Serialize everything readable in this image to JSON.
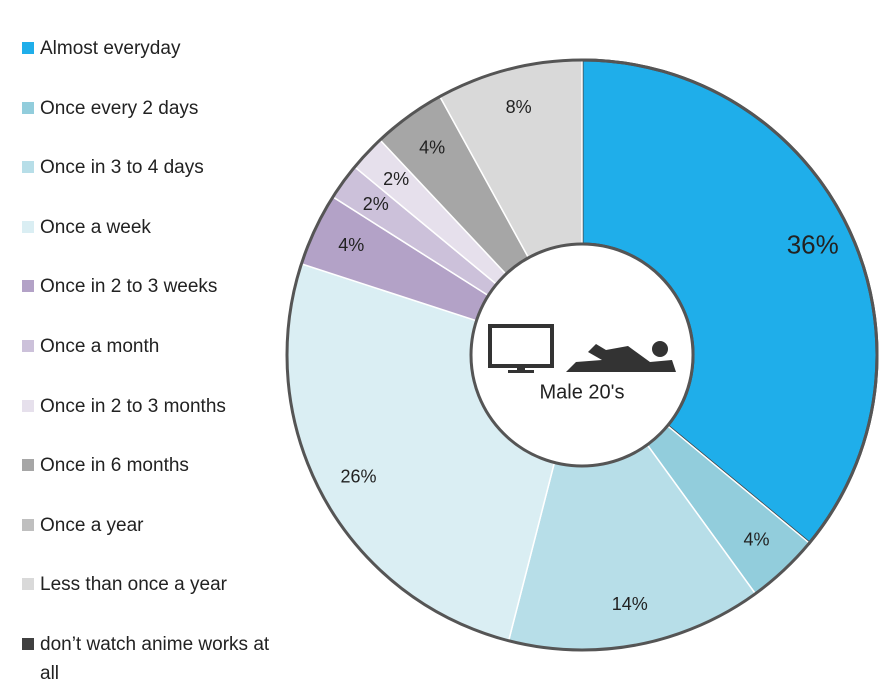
{
  "chart_data": {
    "type": "donut",
    "center_label": "Male 20's",
    "categories": [
      "Almost everyday",
      "Once every 2 days",
      "Once in 3 to 4 days",
      "Once a week",
      "Once in 2 to 3 weeks",
      "Once a month",
      "Once in 2 to 3 months",
      "Once in 6 months",
      "Once a year",
      "Less than once a year",
      "don’t watch anime works at all"
    ],
    "values": [
      36,
      4,
      14,
      26,
      4,
      2,
      2,
      4,
      0,
      8,
      0
    ],
    "value_labels": [
      "36%",
      "4%",
      "14%",
      "26%",
      "4%",
      "2%",
      "2%",
      "4%",
      null,
      "8%",
      null
    ],
    "colors": [
      "#1faeea",
      "#92cddc",
      "#b7dee8",
      "#daeef3",
      "#b3a2c7",
      "#ccc1da",
      "#e6e0ec",
      "#a6a6a6",
      "#bfbfbf",
      "#d9d9d9",
      "#404040"
    ],
    "legend": "left"
  }
}
